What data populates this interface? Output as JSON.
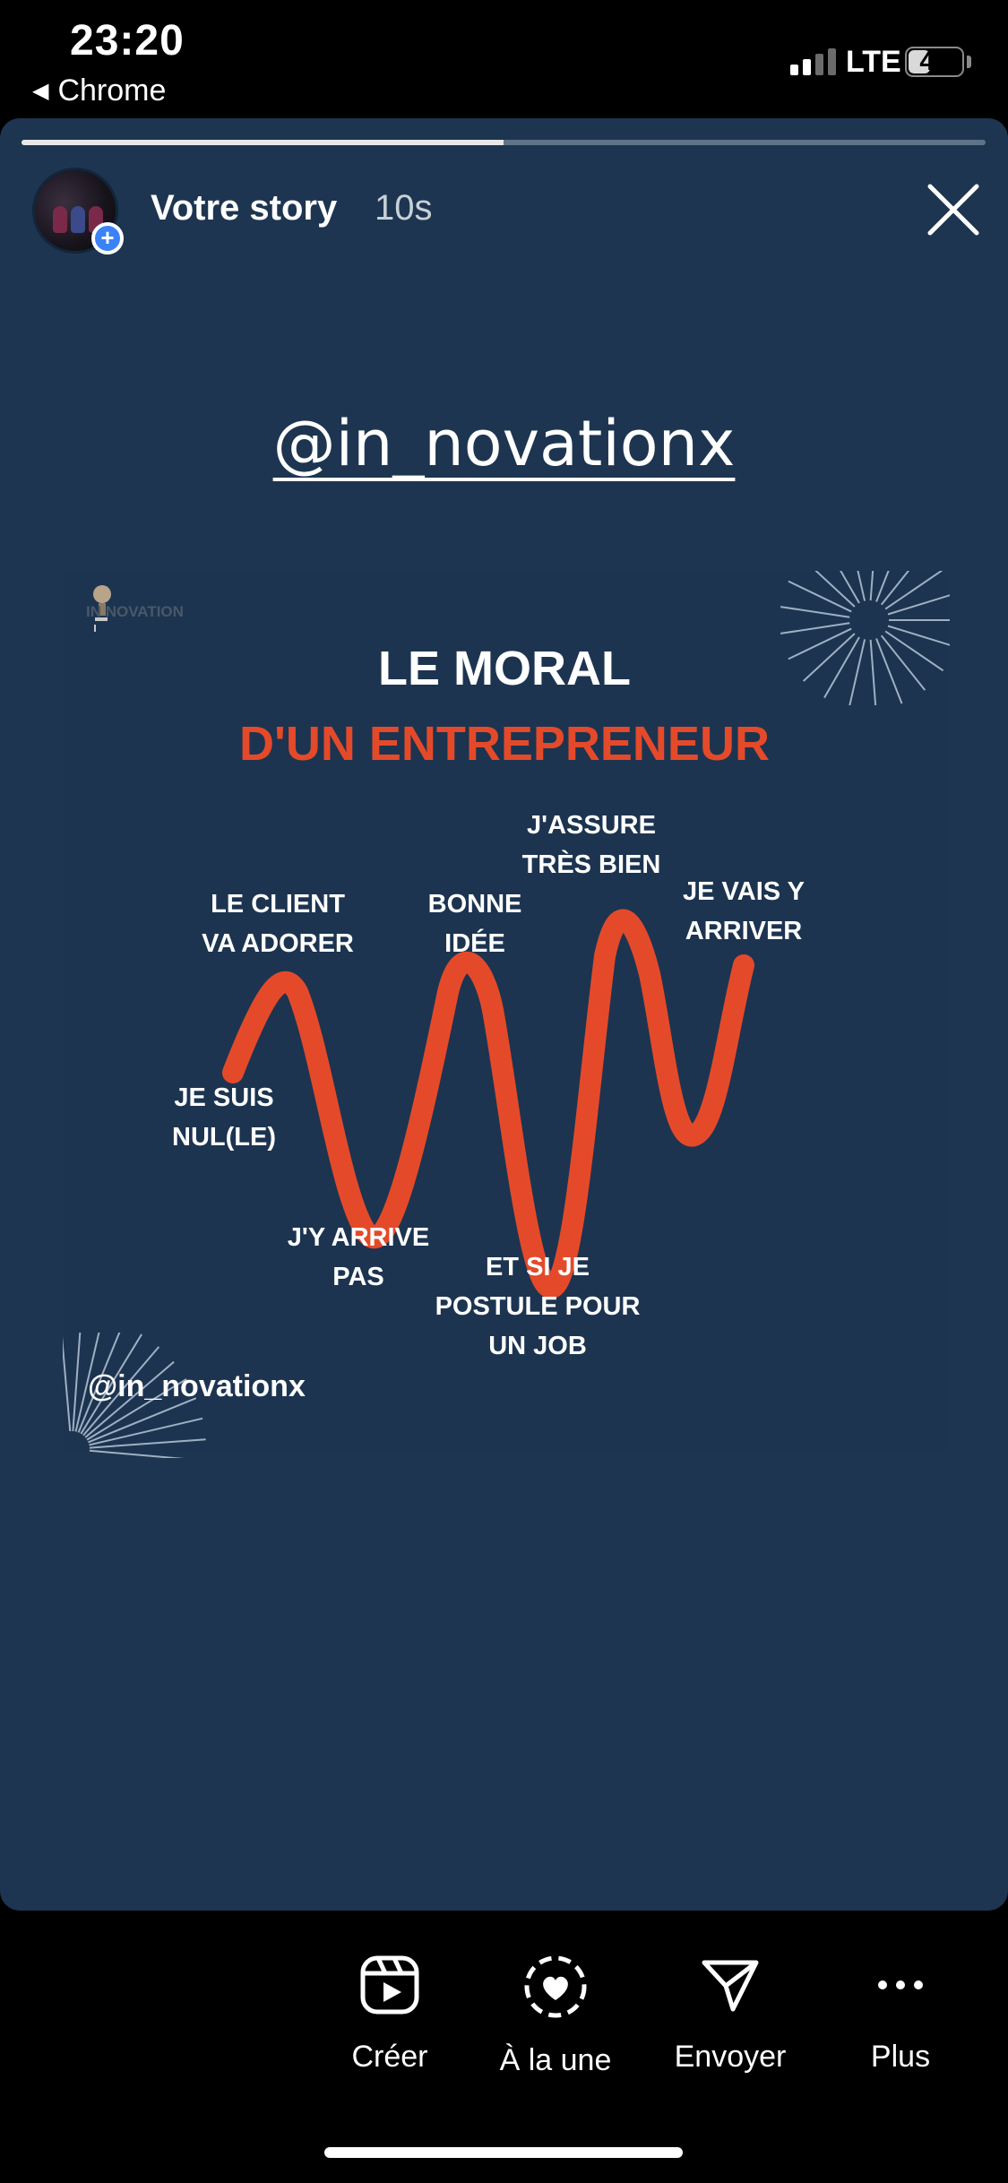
{
  "status_bar": {
    "time": "23:20",
    "back_app": "Chrome",
    "network": "LTE",
    "battery": "42",
    "battery_level": 0.42
  },
  "story": {
    "progress": 0.5,
    "user_label": "Votre story",
    "time_ago": "10s",
    "mention_sticker": "@in_novationx",
    "caption_handle": "@in_novationx",
    "post": {
      "logo_text": "IN NOVATION",
      "title_line1": "LE MORAL",
      "title_line2": "D'UN ENTREPRENEUR",
      "labels": {
        "je_suis_nul": "JE SUIS\nNUL(LE)",
        "le_client": "LE CLIENT\nVA ADORER",
        "jy_arrive_pas": "J'Y ARRIVE\nPAS",
        "bonne_idee": "BONNE\nIDÉE",
        "et_si_je": "ET SI JE\nPOSTULE POUR\nUN JOB",
        "jassure": "J'ASSURE\nTRÈS BIEN",
        "je_vais": "JE VAIS Y\nARRIVER"
      }
    }
  },
  "actions": [
    {
      "label": "Créer",
      "icon": "reels-create-icon"
    },
    {
      "label": "À la une",
      "icon": "highlight-heart-icon"
    },
    {
      "label": "Envoyer",
      "icon": "send-paper-plane-icon"
    },
    {
      "label": "Plus",
      "icon": "more-dots-icon"
    }
  ],
  "colors": {
    "story_bg": "#1d3550",
    "accent_red": "#e44a2a",
    "plus_badge": "#3b82f6"
  }
}
